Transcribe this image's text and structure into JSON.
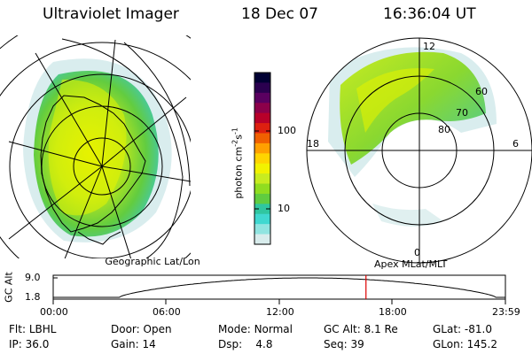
{
  "header": {
    "instrument": "Ultraviolet Imager",
    "date": "18 Dec 07",
    "time": "16:36:04 UT"
  },
  "colorbar": {
    "unit": "photon cm^-2 s^-1",
    "unit_main": "photon cm",
    "unit_exp1": "-2",
    "unit_s": "s",
    "unit_exp2": "-1",
    "tick_top": "100",
    "tick_bottom": "10",
    "colors": [
      "#000033",
      "#2a004f",
      "#5a0060",
      "#8c004a",
      "#b8002a",
      "#dd2010",
      "#f06000",
      "#ffa000",
      "#ffd400",
      "#f2f200",
      "#c8ec20",
      "#90dd20",
      "#60cc40",
      "#30c6a0",
      "#40d8d0",
      "#90e4e0",
      "#d8ecec"
    ]
  },
  "geo_map": {
    "label": "Geographic Lat/Lon"
  },
  "polar_map": {
    "label": "Apex MLat/MLT",
    "mlt_top": "12",
    "mlt_bottom": "0",
    "mlt_left": "18",
    "mlt_right": "6",
    "lat_60": "60",
    "lat_70": "70",
    "lat_80": "80"
  },
  "altitude_plot": {
    "ylabel": "GC Alt",
    "y_top": "9.0",
    "y_bottom": "1.8",
    "x_ticks": [
      "00:00",
      "06:00",
      "12:00",
      "18:00",
      "23:59"
    ],
    "current_time_hours": 16.6
  },
  "info": {
    "filter_label": "Flt:",
    "filter": "LBHL",
    "ip_label": "IP:",
    "ip": "36.0",
    "door_label": "Door:",
    "door": "Open",
    "gain_label": "Gain:",
    "gain": "14",
    "mode_label": "Mode:",
    "mode": "Normal",
    "dsp_label": "Dsp:",
    "dsp": "4.8",
    "gcalt_label": "GC Alt:",
    "gcalt": "8.1 Re",
    "seq_label": "Seq:",
    "seq": "39",
    "glat_label": "GLat:",
    "glat": "-81.0",
    "glon_label": "GLon:",
    "glon": "145.2"
  }
}
